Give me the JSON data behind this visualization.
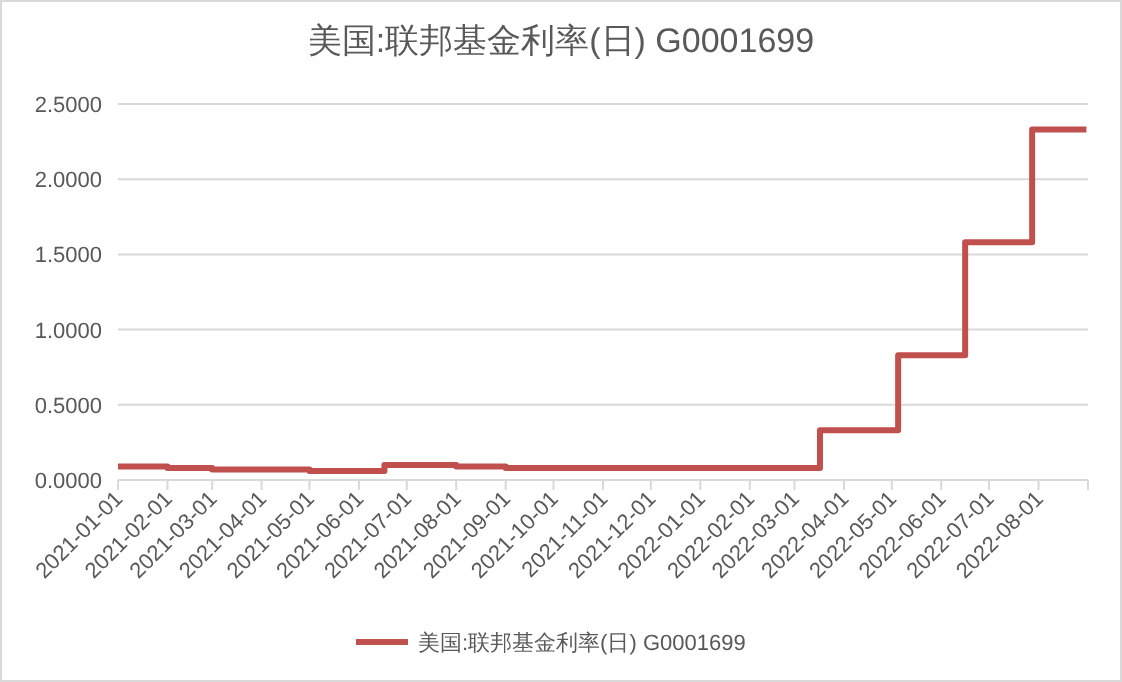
{
  "chart_data": {
    "type": "step",
    "title": "美国:联邦基金利率(日) G0001699",
    "x": [
      "2021-01-01",
      "2021-02-01",
      "2021-03-01",
      "2021-05-01",
      "2021-06-17",
      "2021-08-01",
      "2021-09-01",
      "2022-03-17",
      "2022-05-05",
      "2022-06-16",
      "2022-07-28",
      "2022-08-31"
    ],
    "series": [
      {
        "name": "美国:联邦基金利率(日) G0001699",
        "color": "#c0504d",
        "values": [
          0.09,
          0.08,
          0.07,
          0.06,
          0.1,
          0.09,
          0.08,
          0.33,
          0.83,
          1.58,
          2.33,
          2.33
        ]
      }
    ],
    "xlim": [
      "2021-01-01",
      "2022-09-01"
    ],
    "xticks": [
      "2021-01-01",
      "2021-02-01",
      "2021-03-01",
      "2021-04-01",
      "2021-05-01",
      "2021-06-01",
      "2021-07-01",
      "2021-08-01",
      "2021-09-01",
      "2021-10-01",
      "2021-11-01",
      "2021-12-01",
      "2022-01-01",
      "2022-02-01",
      "2022-03-01",
      "2022-04-01",
      "2022-05-01",
      "2022-06-01",
      "2022-07-01",
      "2022-08-01",
      {
        "value": "2022-09-01",
        "label": null
      }
    ],
    "ylim": [
      0,
      2.5
    ],
    "yticks": [
      {
        "value": 0,
        "label": "0.0000"
      },
      {
        "value": 0.5,
        "label": "0.5000"
      },
      {
        "value": 1,
        "label": "1.0000"
      },
      {
        "value": 1.5,
        "label": "1.5000"
      },
      {
        "value": 2,
        "label": "2.0000"
      },
      {
        "value": 2.5,
        "label": "2.5000"
      }
    ],
    "grid": "y",
    "legend": "bottom"
  }
}
